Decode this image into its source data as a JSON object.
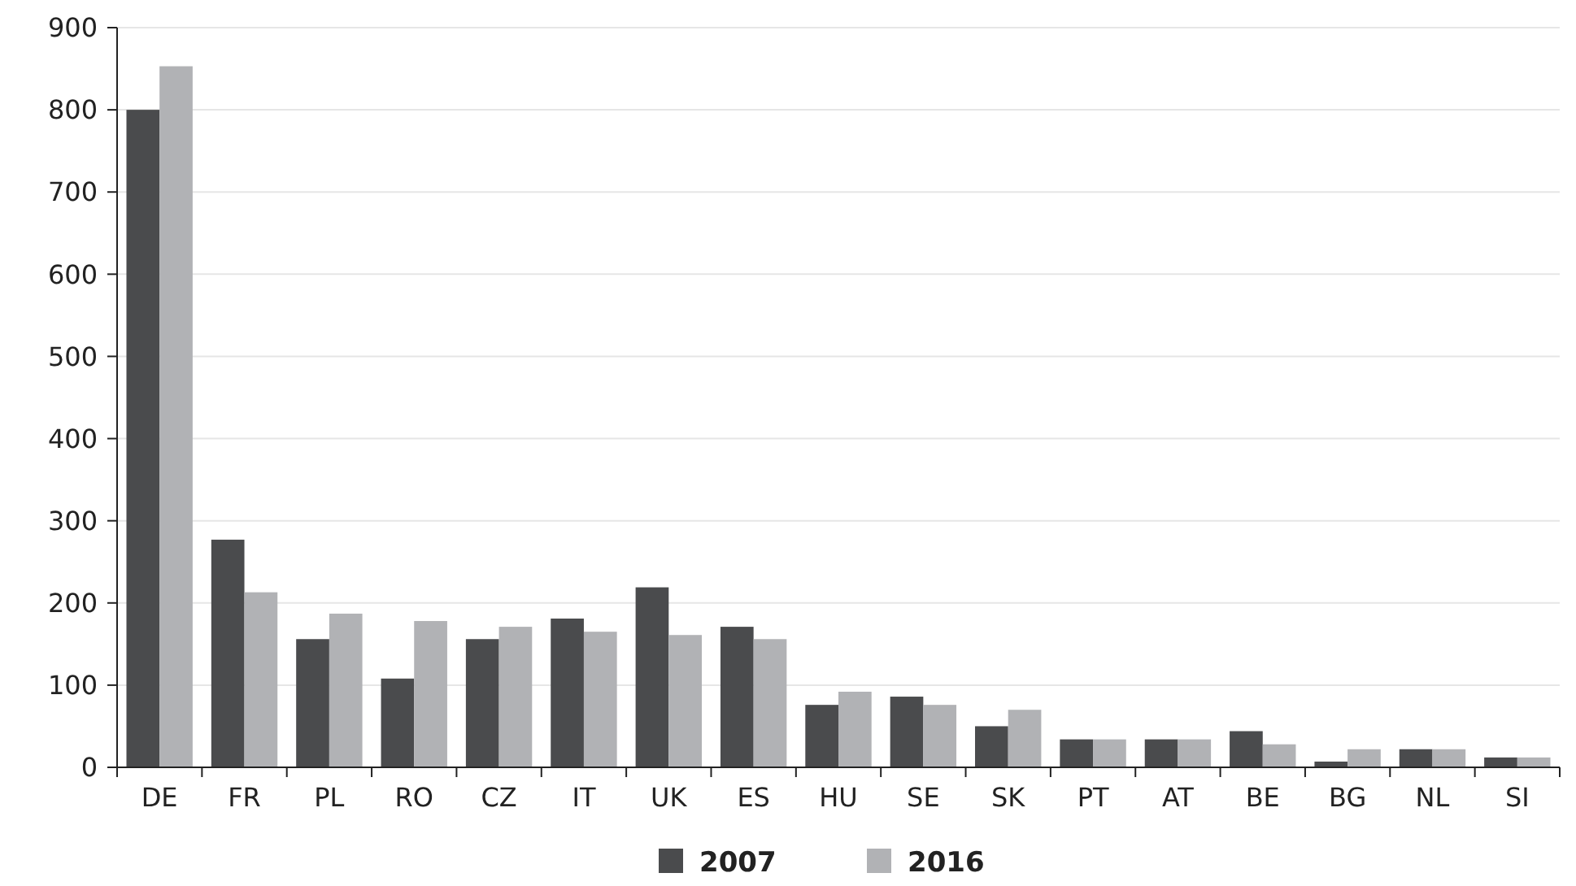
{
  "chart_data": {
    "type": "bar",
    "categories": [
      "DE",
      "FR",
      "PL",
      "RO",
      "CZ",
      "IT",
      "UK",
      "ES",
      "HU",
      "SE",
      "SK",
      "PT",
      "AT",
      "BE",
      "BG",
      "NL",
      "SI"
    ],
    "series": [
      {
        "name": "2007",
        "color": "#4a4b4d",
        "values": [
          800,
          277,
          156,
          108,
          156,
          181,
          219,
          171,
          76,
          86,
          50,
          34,
          34,
          44,
          7,
          22,
          12
        ]
      },
      {
        "name": "2016",
        "color": "#b1b2b5",
        "values": [
          853,
          213,
          187,
          178,
          171,
          165,
          161,
          156,
          92,
          76,
          70,
          34,
          34,
          28,
          22,
          22,
          12
        ]
      }
    ],
    "ylim": [
      0,
      900
    ],
    "yticks": [
      0,
      100,
      200,
      300,
      400,
      500,
      600,
      700,
      800,
      900
    ],
    "grid": "y",
    "legend": "bottom"
  }
}
